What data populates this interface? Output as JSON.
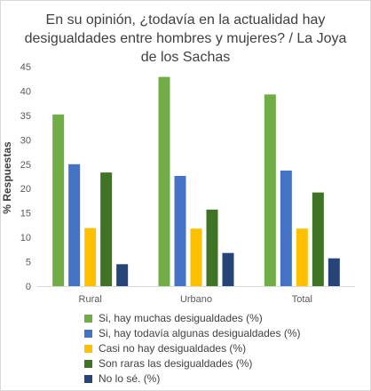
{
  "chart_data": {
    "type": "bar",
    "title_lines": [
      "En su opinión, ¿todavía en la actualidad hay",
      "desigualdades entre hombres y mujeres? / La Joya",
      "de los Sachas"
    ],
    "ylabel": "% Respuestas",
    "xlabel": "",
    "ylim": [
      0,
      45
    ],
    "yticks": [
      0,
      5,
      10,
      15,
      20,
      25,
      30,
      35,
      40,
      45
    ],
    "categories": [
      "Rural",
      "Urbano",
      "Total"
    ],
    "legend_position": "bottom",
    "grid": false,
    "series": [
      {
        "name": "Si, hay muchas desigualdades (%)",
        "color": "#70ad47",
        "values": [
          35.2,
          42.9,
          39.3
        ]
      },
      {
        "name": "Si, hay todavía algunas desigualdades (%)",
        "color": "#4472c4",
        "values": [
          25.0,
          22.6,
          23.7
        ]
      },
      {
        "name": "Casi no hay desigualdades (%)",
        "color": "#ffc000",
        "values": [
          11.9,
          11.8,
          11.8
        ]
      },
      {
        "name": "Son raras las desigualdades (%)",
        "color": "#3f7326",
        "values": [
          23.3,
          15.7,
          19.2
        ]
      },
      {
        "name": "No lo sé. (%)",
        "color": "#264478",
        "values": [
          4.5,
          6.8,
          5.7
        ]
      }
    ]
  }
}
